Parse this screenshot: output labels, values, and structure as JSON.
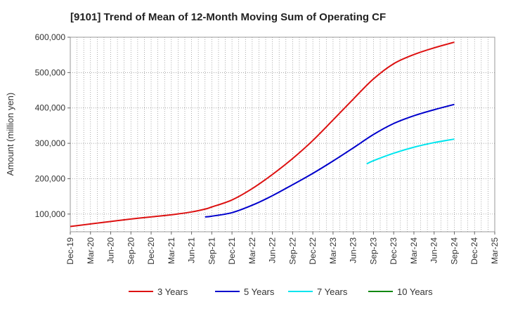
{
  "chart_data": {
    "type": "line",
    "title": "[9101]  Trend of Mean of 12-Month Moving Sum of Operating CF",
    "xlabel": "",
    "ylabel": "Amount (million yen)",
    "ylim": [
      50000,
      600000
    ],
    "yticks": [
      100000,
      200000,
      300000,
      400000,
      500000,
      600000
    ],
    "ytick_labels": [
      "100,000",
      "200,000",
      "300,000",
      "400,000",
      "500,000",
      "600,000"
    ],
    "x_start": "Dec-19",
    "x_end": "Mar-25",
    "xtick_labels": [
      "Dec-19",
      "Mar-20",
      "Jun-20",
      "Sep-20",
      "Dec-20",
      "Mar-21",
      "Jun-21",
      "Sep-21",
      "Dec-21",
      "Mar-22",
      "Jun-22",
      "Sep-22",
      "Dec-22",
      "Mar-23",
      "Jun-23",
      "Sep-23",
      "Dec-23",
      "Mar-24",
      "Jun-24",
      "Sep-24",
      "Dec-24",
      "Mar-25"
    ],
    "grid": true,
    "legend_position": "bottom",
    "series": [
      {
        "name": "3 Years",
        "color": "#dd1111",
        "x": [
          0,
          3,
          6,
          9,
          12,
          15,
          18,
          20,
          21,
          24,
          27,
          30,
          33,
          36,
          39,
          42,
          45,
          48,
          51,
          54,
          57
        ],
        "values": [
          65000,
          72000,
          79000,
          86000,
          92000,
          98000,
          106000,
          114000,
          120000,
          140000,
          172000,
          212000,
          257000,
          308000,
          366000,
          425000,
          482000,
          525000,
          551000,
          570000,
          586000
        ]
      },
      {
        "name": "5 Years",
        "color": "#0000cc",
        "x": [
          20,
          21,
          24,
          27,
          30,
          33,
          36,
          39,
          42,
          45,
          48,
          51,
          54,
          57
        ],
        "values": [
          92000,
          94000,
          104000,
          125000,
          152000,
          183000,
          215000,
          250000,
          287000,
          325000,
          356000,
          378000,
          395000,
          410000
        ]
      },
      {
        "name": "7 Years",
        "color": "#00e5ee",
        "x": [
          44,
          45,
          48,
          51,
          54,
          57
        ],
        "values": [
          242000,
          251000,
          272000,
          289000,
          302000,
          312000
        ]
      },
      {
        "name": "10 Years",
        "color": "#118811",
        "x": [],
        "values": []
      }
    ]
  }
}
